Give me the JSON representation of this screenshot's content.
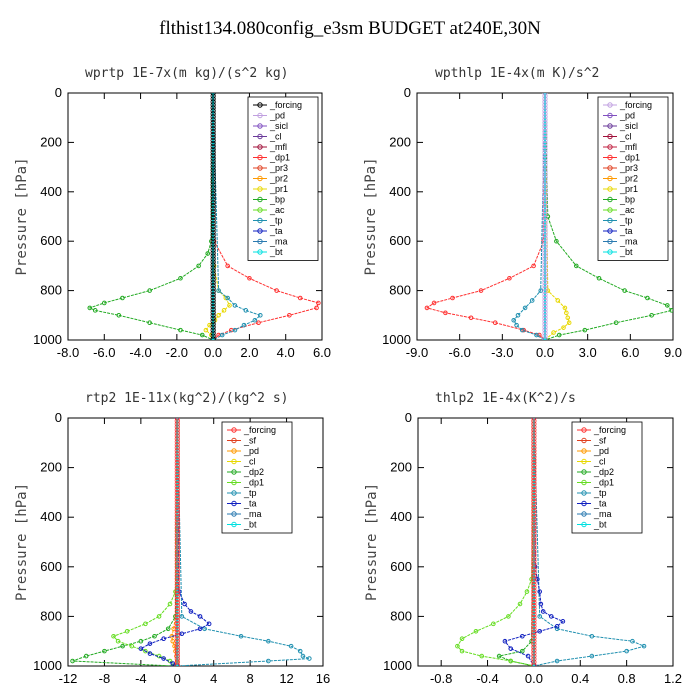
{
  "title": "flthist134.080config_e3sm  BUDGET at240E,30N",
  "chart_data": [
    {
      "type": "line",
      "title": "wprtp  1E-7x(m kg)/(s^2 kg)",
      "ylabel": "Pressure [hPa]",
      "xlim": [
        -8,
        6
      ],
      "ylim": [
        1000,
        0
      ],
      "xticks": [
        "-8.0",
        "-6.0",
        "-4.0",
        "-2.0",
        "0.0",
        "2.0",
        "4.0",
        "6.0"
      ],
      "xtick_values": [
        -8,
        -6,
        -4,
        -2,
        0,
        2,
        4,
        6
      ],
      "yticks": [
        0,
        200,
        400,
        600,
        800,
        1000
      ],
      "legend_loc": "top-right",
      "series": [
        {
          "name": "_forcing",
          "color": "#000000",
          "p": [
            0,
            1000
          ],
          "v": [
            0,
            0
          ]
        },
        {
          "name": "_pd",
          "color": "#c0a0e0",
          "p": [
            0,
            1000
          ],
          "v": [
            0,
            0
          ]
        },
        {
          "name": "_sicl",
          "color": "#8050c0",
          "p": [
            0,
            1000
          ],
          "v": [
            0,
            0
          ]
        },
        {
          "name": "_cl",
          "color": "#6a3a9a",
          "p": [
            0,
            1000
          ],
          "v": [
            0,
            0
          ]
        },
        {
          "name": "_mfl",
          "color": "#a0103a",
          "p": [
            0,
            1000
          ],
          "v": [
            0,
            0
          ]
        },
        {
          "name": "_dp1",
          "color": "#ff3030",
          "p": [
            0,
            600,
            700,
            750,
            800,
            830,
            850,
            870,
            900,
            930,
            960,
            980,
            1000
          ],
          "v": [
            0,
            0.05,
            0.8,
            2.0,
            3.5,
            4.8,
            5.8,
            5.7,
            4.2,
            2.5,
            1.0,
            0.3,
            0
          ]
        },
        {
          "name": "_pr3",
          "color": "#e04020",
          "p": [
            0,
            1000
          ],
          "v": [
            0,
            0
          ]
        },
        {
          "name": "_pr2",
          "color": "#ff9900",
          "p": [
            0,
            1000
          ],
          "v": [
            0,
            0
          ]
        },
        {
          "name": "_pr1",
          "color": "#e8d800",
          "p": [
            0,
            700,
            800,
            830,
            860,
            880,
            900,
            920,
            940,
            960,
            980,
            1000
          ],
          "v": [
            0,
            0.05,
            0.3,
            0.7,
            0.9,
            0.6,
            0.3,
            0.1,
            -0.2,
            -0.4,
            -0.1,
            0
          ]
        },
        {
          "name": "_bp",
          "color": "#22aa22",
          "p": [
            0,
            600,
            650,
            700,
            750,
            800,
            830,
            850,
            870,
            880,
            900,
            930,
            960,
            980,
            1000
          ],
          "v": [
            0,
            -0.1,
            -0.3,
            -0.8,
            -1.8,
            -3.5,
            -5.0,
            -6.0,
            -6.8,
            -6.5,
            -5.2,
            -3.5,
            -1.8,
            -0.6,
            0
          ]
        },
        {
          "name": "_ac",
          "color": "#66dd22",
          "p": [
            0,
            1000
          ],
          "v": [
            0,
            0
          ]
        },
        {
          "name": "_tp",
          "color": "#2090b0",
          "p": [
            0,
            800,
            830,
            860,
            880,
            900,
            920,
            940,
            960,
            980,
            1000
          ],
          "v": [
            0,
            0.3,
            0.8,
            1.2,
            1.8,
            2.6,
            2.3,
            1.7,
            1.2,
            0.5,
            0
          ]
        },
        {
          "name": "_ta",
          "color": "#1020c0",
          "p": [
            0,
            1000
          ],
          "v": [
            0,
            0
          ]
        },
        {
          "name": "_ma",
          "color": "#2a7ab0",
          "p": [
            0,
            1000
          ],
          "v": [
            0,
            0
          ]
        },
        {
          "name": "_bt",
          "color": "#00e0e0",
          "p": [
            0,
            1000
          ],
          "v": [
            0,
            0
          ]
        }
      ]
    },
    {
      "type": "line",
      "title": "wpthlp  1E-4x(m K)/s^2",
      "ylabel": "Pressure [hPa]",
      "xlim": [
        -9,
        9
      ],
      "ylim": [
        1000,
        0
      ],
      "xticks": [
        "-9.0",
        "-6.0",
        "-3.0",
        "0.0",
        "3.0",
        "6.0",
        "9.0"
      ],
      "xtick_values": [
        -9,
        -6,
        -3,
        0,
        3,
        6,
        9
      ],
      "yticks": [
        0,
        200,
        400,
        600,
        800,
        1000
      ],
      "legend_loc": "top-right",
      "series": [
        {
          "name": "_forcing",
          "color": "#c0a0e0",
          "p": [
            0,
            1000
          ],
          "v": [
            0,
            0
          ]
        },
        {
          "name": "_pd",
          "color": "#8050c0",
          "p": [
            0,
            1000
          ],
          "v": [
            0,
            0
          ]
        },
        {
          "name": "_sicl",
          "color": "#6a3a9a",
          "p": [
            0,
            1000
          ],
          "v": [
            0,
            0
          ]
        },
        {
          "name": "_cl",
          "color": "#a0103a",
          "p": [
            0,
            1000
          ],
          "v": [
            0,
            0
          ]
        },
        {
          "name": "_mfl",
          "color": "#c02040",
          "p": [
            0,
            1000
          ],
          "v": [
            0,
            0
          ]
        },
        {
          "name": "_dp1",
          "color": "#ff3030",
          "p": [
            0,
            600,
            700,
            750,
            800,
            830,
            850,
            870,
            890,
            910,
            930,
            960,
            980,
            1000
          ],
          "v": [
            0,
            -0.1,
            -0.8,
            -2.5,
            -4.5,
            -6.5,
            -7.8,
            -8.3,
            -7.0,
            -5.2,
            -3.5,
            -1.5,
            -0.4,
            0
          ]
        },
        {
          "name": "_pr3",
          "color": "#e04020",
          "p": [
            0,
            1000
          ],
          "v": [
            0,
            0
          ]
        },
        {
          "name": "_pr2",
          "color": "#ff9900",
          "p": [
            0,
            1000
          ],
          "v": [
            0,
            0
          ]
        },
        {
          "name": "_pr1",
          "color": "#e8d800",
          "p": [
            0,
            800,
            840,
            870,
            890,
            910,
            930,
            950,
            970,
            1000
          ],
          "v": [
            0,
            0.2,
            0.9,
            1.4,
            1.5,
            1.6,
            1.7,
            1.3,
            0.6,
            0
          ]
        },
        {
          "name": "_bp",
          "color": "#22aa22",
          "p": [
            0,
            500,
            600,
            700,
            750,
            800,
            830,
            860,
            880,
            900,
            930,
            960,
            980,
            1000
          ],
          "v": [
            0,
            0.2,
            0.8,
            2.2,
            3.8,
            5.6,
            7.2,
            8.6,
            8.9,
            7.5,
            5.0,
            2.8,
            1.0,
            0
          ]
        },
        {
          "name": "_ac",
          "color": "#66dd22",
          "p": [
            0,
            1000
          ],
          "v": [
            0,
            0
          ]
        },
        {
          "name": "_tp",
          "color": "#2090b0",
          "p": [
            0,
            800,
            840,
            870,
            900,
            920,
            940,
            960,
            980,
            1000
          ],
          "v": [
            0,
            -0.3,
            -0.9,
            -1.4,
            -1.9,
            -2.2,
            -2.0,
            -1.6,
            -0.6,
            0
          ]
        },
        {
          "name": "_ta",
          "color": "#1020c0",
          "p": [
            0,
            1000
          ],
          "v": [
            0,
            0
          ]
        },
        {
          "name": "_ma",
          "color": "#2a7ab0",
          "p": [
            0,
            1000
          ],
          "v": [
            0,
            0
          ]
        },
        {
          "name": "_bt",
          "color": "#00e0e0",
          "p": [
            0,
            1000
          ],
          "v": [
            0,
            0
          ]
        }
      ]
    },
    {
      "type": "line",
      "title": "rtp2  1E-11x(kg^2)/(kg^2 s)",
      "ylabel": "Pressure [hPa]",
      "xlim": [
        -12,
        16
      ],
      "ylim": [
        1000,
        0
      ],
      "xticks": [
        "-12",
        "-8",
        "-4",
        "0",
        "4",
        "8",
        "12",
        "16"
      ],
      "xtick_values": [
        -12,
        -8,
        -4,
        0,
        4,
        8,
        12,
        16
      ],
      "yticks": [
        0,
        200,
        400,
        600,
        800,
        1000
      ],
      "legend_loc": "top-right",
      "series": [
        {
          "name": "_forcing",
          "color": "#ff3030",
          "p": [
            0,
            1000
          ],
          "v": [
            0,
            0
          ]
        },
        {
          "name": "_sf",
          "color": "#e04020",
          "p": [
            0,
            1000
          ],
          "v": [
            0,
            0
          ]
        },
        {
          "name": "_pd",
          "color": "#ff9900",
          "p": [
            0,
            700,
            800,
            850,
            880,
            900,
            920,
            940,
            960,
            980,
            1000
          ],
          "v": [
            0,
            -0.05,
            -0.2,
            -0.4,
            -0.6,
            -0.5,
            -0.3,
            -0.2,
            -0.1,
            0,
            0
          ]
        },
        {
          "name": "_cl",
          "color": "#e8d800",
          "p": [
            0,
            1000
          ],
          "v": [
            0,
            0
          ]
        },
        {
          "name": "_dp2",
          "color": "#22aa22",
          "p": [
            0,
            800,
            850,
            880,
            900,
            920,
            940,
            960,
            980,
            1000
          ],
          "v": [
            0,
            -0.2,
            -1.0,
            -2.5,
            -4.0,
            -6.0,
            -8.0,
            -10.0,
            -11.5,
            -0.5
          ]
        },
        {
          "name": "_dp1",
          "color": "#66dd22",
          "p": [
            0,
            700,
            750,
            800,
            830,
            860,
            880,
            900,
            920,
            940,
            960,
            980,
            1000
          ],
          "v": [
            0,
            -0.2,
            -0.8,
            -2.0,
            -3.5,
            -5.5,
            -7.0,
            -6.5,
            -5.0,
            -3.5,
            -2.0,
            -0.8,
            0
          ]
        },
        {
          "name": "_tp",
          "color": "#2090b0",
          "p": [
            0,
            800,
            850,
            880,
            900,
            920,
            940,
            960,
            970,
            980,
            1000
          ],
          "v": [
            0,
            0.5,
            3.0,
            7.0,
            10.0,
            12.5,
            13.5,
            13.8,
            14.5,
            10.0,
            0
          ]
        },
        {
          "name": "_ta",
          "color": "#1020c0",
          "p": [
            0,
            700,
            750,
            780,
            800,
            830,
            850,
            870,
            890,
            910,
            930,
            950,
            970,
            990,
            1000
          ],
          "v": [
            0,
            0.2,
            0.8,
            1.5,
            2.5,
            3.5,
            2.5,
            0.5,
            -1.5,
            -3.0,
            -4.0,
            -3.0,
            -1.5,
            -0.5,
            0
          ]
        },
        {
          "name": "_ma",
          "color": "#2a7ab0",
          "p": [
            0,
            1000
          ],
          "v": [
            0,
            0
          ]
        },
        {
          "name": "_bt",
          "color": "#00e0e0",
          "p": [
            0,
            1000
          ],
          "v": [
            0,
            0
          ]
        }
      ]
    },
    {
      "type": "line",
      "title": "thlp2  1E-4x(K^2)/s",
      "ylabel": "Pressure [hPa]",
      "xlim": [
        -1.0,
        1.2
      ],
      "ylim": [
        1000,
        0
      ],
      "xticks": [
        "-0.8",
        "-0.4",
        "0.0",
        "0.4",
        "0.8",
        "1.2"
      ],
      "xtick_values": [
        -0.8,
        -0.4,
        0.0,
        0.4,
        0.8,
        1.2
      ],
      "yticks": [
        0,
        200,
        400,
        600,
        800,
        1000
      ],
      "legend_loc": "top-right",
      "series": [
        {
          "name": "_forcing",
          "color": "#ff3030",
          "p": [
            0,
            1000
          ],
          "v": [
            0,
            0
          ]
        },
        {
          "name": "_sf",
          "color": "#e04020",
          "p": [
            0,
            1000
          ],
          "v": [
            0,
            0
          ]
        },
        {
          "name": "_pd",
          "color": "#ff9900",
          "p": [
            0,
            1000
          ],
          "v": [
            0,
            0
          ]
        },
        {
          "name": "_cl",
          "color": "#e8d800",
          "p": [
            0,
            1000
          ],
          "v": [
            0,
            0
          ]
        },
        {
          "name": "_dp2",
          "color": "#22aa22",
          "p": [
            0,
            900,
            940,
            960,
            980,
            1000
          ],
          "v": [
            0,
            -0.02,
            -0.1,
            -0.3,
            -0.2,
            0
          ]
        },
        {
          "name": "_dp1",
          "color": "#66dd22",
          "p": [
            0,
            650,
            700,
            750,
            800,
            830,
            860,
            890,
            920,
            940,
            960,
            980,
            1000
          ],
          "v": [
            0,
            -0.02,
            -0.06,
            -0.12,
            -0.22,
            -0.35,
            -0.5,
            -0.62,
            -0.66,
            -0.62,
            -0.45,
            -0.2,
            0
          ]
        },
        {
          "name": "_tp",
          "color": "#2090b0",
          "p": [
            0,
            800,
            850,
            880,
            900,
            920,
            940,
            960,
            980,
            1000
          ],
          "v": [
            0,
            0.05,
            0.2,
            0.5,
            0.85,
            0.95,
            0.8,
            0.5,
            0.2,
            0
          ]
        },
        {
          "name": "_ta",
          "color": "#1020c0",
          "p": [
            0,
            600,
            650,
            700,
            750,
            780,
            800,
            820,
            840,
            860,
            880,
            900,
            930,
            960,
            1000
          ],
          "v": [
            0,
            0.01,
            0.03,
            0.05,
            0.06,
            0.08,
            0.15,
            0.25,
            0.2,
            0.05,
            -0.1,
            -0.25,
            -0.2,
            -0.05,
            0
          ]
        },
        {
          "name": "_ma",
          "color": "#2a7ab0",
          "p": [
            0,
            1000
          ],
          "v": [
            0,
            0
          ]
        },
        {
          "name": "_bt",
          "color": "#00e0e0",
          "p": [
            0,
            1000
          ],
          "v": [
            0,
            0
          ]
        }
      ]
    }
  ]
}
